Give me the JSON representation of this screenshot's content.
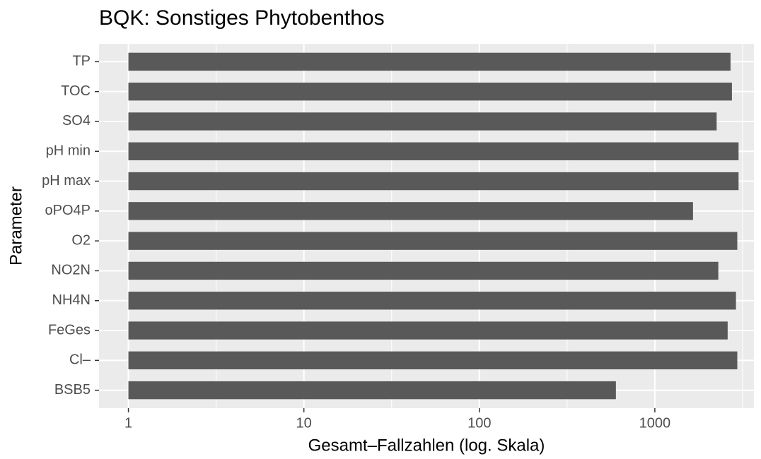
{
  "chart_data": {
    "type": "bar",
    "orientation": "horizontal",
    "title": "BQK: Sonstiges Phytobenthos",
    "x_label": "Gesamt–Fallzahlen (log. Skala)",
    "y_label": "Parameter",
    "categories": [
      "BSB5",
      "Cl–",
      "FeGes",
      "NH4N",
      "NO2N",
      "O2",
      "oPO4P",
      "pH max",
      "pH min",
      "SO4",
      "TOC",
      "TP"
    ],
    "values": [
      600,
      2950,
      2600,
      2900,
      2300,
      2950,
      1650,
      3000,
      3000,
      2250,
      2750,
      2700
    ],
    "color": "#595959",
    "xlog": true,
    "xlim": [
      0.68,
      3670
    ],
    "xticks": [
      1,
      10,
      100,
      1000
    ],
    "grid": true
  }
}
